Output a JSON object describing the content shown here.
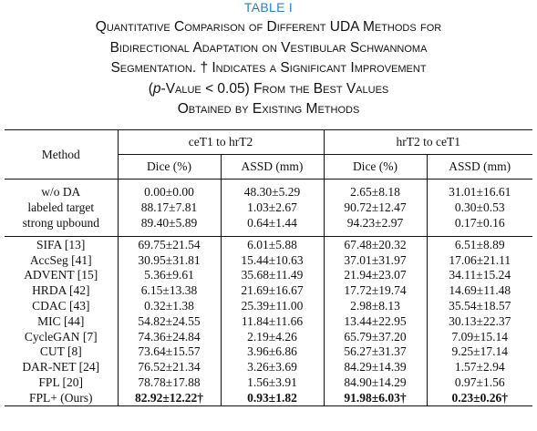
{
  "table_label": "TABLE I",
  "caption": {
    "line1": "Quantitative Comparison of Different UDA Methods for",
    "line2": "Bidirectional Adaptation on Vestibular Schwannoma",
    "line3": "Segmentation. † Indicates a Significant Improvement",
    "line4_open": "(",
    "line4_p": "p",
    "line4_rest": "-Value < 0.05) From the Best Values",
    "line5": "Obtained by Existing Methods"
  },
  "header": {
    "method": "Method",
    "group1": "ceT1 to hrT2",
    "group2": "hrT2 to ceT1",
    "dice": "Dice (%)",
    "assd": "ASSD (mm)"
  },
  "reference_rows": [
    {
      "method": "w/o DA",
      "d1": "0.00±0.00",
      "a1": "48.30±5.29",
      "d2": "2.65±8.18",
      "a2": "31.01±16.61"
    },
    {
      "method": "labeled target",
      "d1": "88.17±7.81",
      "a1": "1.03±2.67",
      "d2": "90.72±12.47",
      "a2": "0.30±0.53"
    },
    {
      "method": "strong upbound",
      "d1": "89.40±5.89",
      "a1": "0.64±1.44",
      "d2": "94.23±2.97",
      "a2": "0.17±0.16"
    }
  ],
  "method_rows": [
    {
      "method": "SIFA [13]",
      "d1": "69.75±21.54",
      "a1": "6.01±5.88",
      "d2": "67.48±20.32",
      "a2": "6.51±8.89"
    },
    {
      "method": "AccSeg [41]",
      "d1": "30.95±31.81",
      "a1": "15.44±10.63",
      "d2": "37.01±31.97",
      "a2": "17.06±21.11"
    },
    {
      "method": "ADVENT [15]",
      "d1": "5.36±9.61",
      "a1": "35.68±11.49",
      "d2": "21.94±23.07",
      "a2": "34.11±15.24"
    },
    {
      "method": "HRDA [42]",
      "d1": "6.15±13.38",
      "a1": "21.69±16.67",
      "d2": "17.72±19.74",
      "a2": "14.69±11.48"
    },
    {
      "method": "CDAC [43]",
      "d1": "0.32±1.38",
      "a1": "25.39±11.00",
      "d2": "2.98±8.13",
      "a2": "35.54±18.57"
    },
    {
      "method": "MIC [44]",
      "d1": "54.82±24.55",
      "a1": "11.84±11.66",
      "d2": "13.44±22.95",
      "a2": "30.13±22.37"
    },
    {
      "method": "CycleGAN [7]",
      "d1": "74.36±24.84",
      "a1": "2.19±4.26",
      "d2": "65.79±37.20",
      "a2": "7.09±15.14"
    },
    {
      "method": "CUT [8]",
      "d1": "73.64±15.57",
      "a1": "3.96±6.86",
      "d2": "56.27±31.37",
      "a2": "9.25±17.14"
    },
    {
      "method": "DAR-NET [24]",
      "d1": "76.52±21.34",
      "a1": "3.26±3.69",
      "d2": "84.29±14.39",
      "a2": "1.57±2.94"
    },
    {
      "method": "FPL [20]",
      "d1": "78.78±17.88",
      "a1": "1.56±3.91",
      "d2": "84.90±14.29",
      "a2": "0.97±1.56"
    }
  ],
  "ours_row": {
    "method": "FPL+ (Ours)",
    "d1": "82.92±12.22†",
    "a1": "0.93±1.82",
    "d2": "91.98±6.03†",
    "a2": "0.23±0.26†"
  }
}
